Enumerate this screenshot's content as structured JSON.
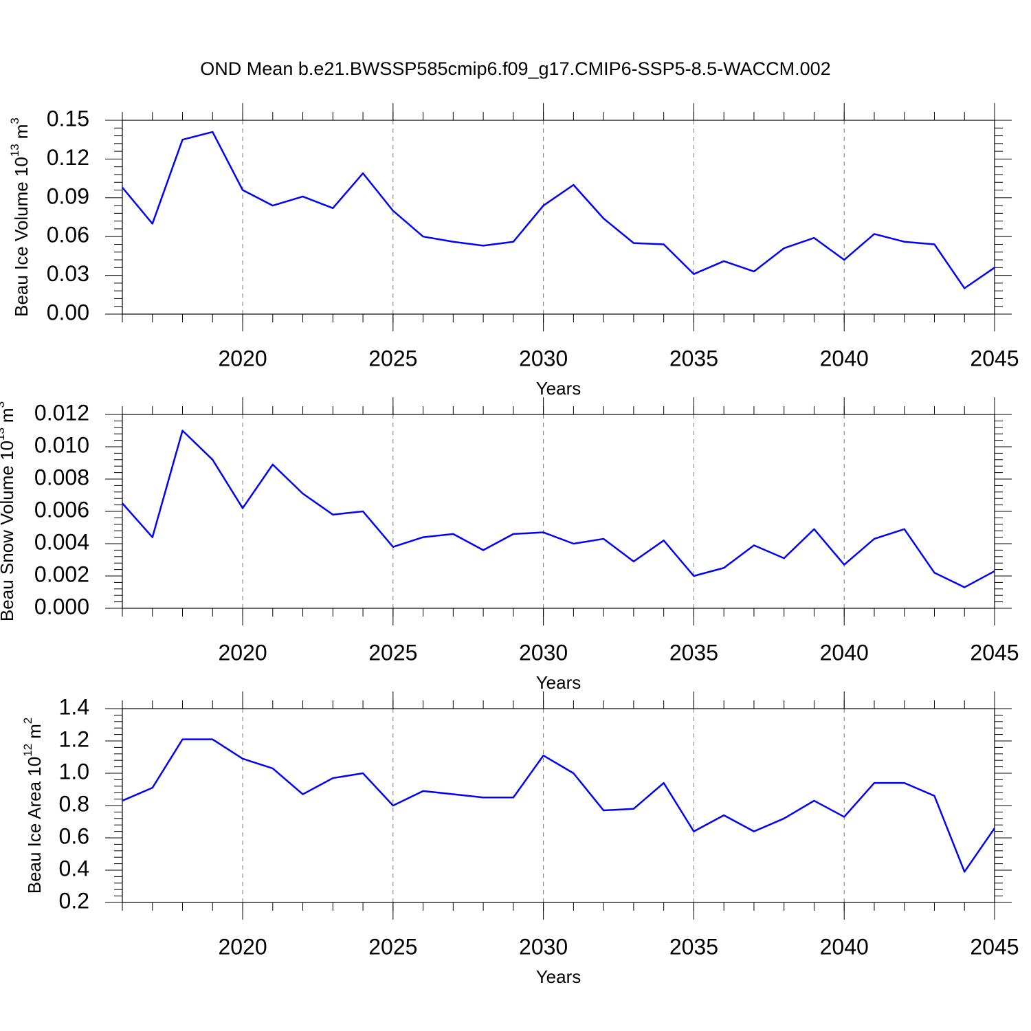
{
  "chart_data": [
    {
      "type": "line",
      "title": "OND Mean b.e21.BWSSP585cmip6.f09_g17.CMIP6-SSP5-8.5-WACCM.002",
      "ylabel": {
        "text": "Beau Ice Volume 10",
        "exp": "13",
        "unit": "m",
        "unit_exp": "3"
      },
      "xlabel": "Years",
      "x": [
        2016,
        2017,
        2018,
        2019,
        2020,
        2021,
        2022,
        2023,
        2024,
        2025,
        2026,
        2027,
        2028,
        2029,
        2030,
        2031,
        2032,
        2033,
        2034,
        2035,
        2036,
        2037,
        2038,
        2039,
        2040,
        2041,
        2042,
        2043,
        2044,
        2045
      ],
      "values": [
        0.098,
        0.07,
        0.135,
        0.141,
        0.096,
        0.084,
        0.091,
        0.082,
        0.109,
        0.08,
        0.06,
        0.056,
        0.053,
        0.056,
        0.084,
        0.1,
        0.074,
        0.055,
        0.054,
        0.031,
        0.041,
        0.033,
        0.051,
        0.059,
        0.042,
        0.062,
        0.056,
        0.054,
        0.02,
        0.036
      ],
      "color": "#0000ff",
      "xlim": [
        2016,
        2045
      ],
      "xticks": [
        2020,
        2025,
        2030,
        2035,
        2040,
        2045
      ],
      "ylim": [
        0,
        0.15
      ],
      "yticks": [
        {
          "value": 0,
          "label": "0.00"
        },
        0.03,
        0.06,
        0.09,
        0.12,
        0.15
      ],
      "grid": "x"
    },
    {
      "type": "line",
      "ylabel": {
        "text": "Beau Snow Volume 10",
        "exp": "13",
        "unit": "m",
        "unit_exp": "3"
      },
      "xlabel": "Years",
      "x": [
        2016,
        2017,
        2018,
        2019,
        2020,
        2021,
        2022,
        2023,
        2024,
        2025,
        2026,
        2027,
        2028,
        2029,
        2030,
        2031,
        2032,
        2033,
        2034,
        2035,
        2036,
        2037,
        2038,
        2039,
        2040,
        2041,
        2042,
        2043,
        2044,
        2045
      ],
      "values": [
        0.0065,
        0.0044,
        0.011,
        0.0092,
        0.0062,
        0.0089,
        0.0071,
        0.0058,
        0.006,
        0.0038,
        0.0044,
        0.0046,
        0.0036,
        0.0046,
        0.0047,
        0.004,
        0.0043,
        0.0029,
        0.0042,
        0.002,
        0.0025,
        0.0039,
        0.0031,
        0.0049,
        0.0027,
        0.0043,
        0.0049,
        0.0022,
        0.0013,
        0.0023
      ],
      "color": "#0000ff",
      "xlim": [
        2016,
        2045
      ],
      "xticks": [
        2020,
        2025,
        2030,
        2035,
        2040,
        2045
      ],
      "ylim": [
        0,
        0.012
      ],
      "yticks": [
        {
          "value": 0,
          "label": "0.000"
        },
        0.002,
        0.004,
        0.006,
        0.008,
        {
          "value": 0.01,
          "label": "0.010"
        },
        0.012
      ],
      "grid": "x"
    },
    {
      "type": "line",
      "ylabel": {
        "text": "Beau Ice Area 10",
        "exp": "12",
        "unit": "m",
        "unit_exp": "2"
      },
      "xlabel": "Years",
      "x": [
        2016,
        2017,
        2018,
        2019,
        2020,
        2021,
        2022,
        2023,
        2024,
        2025,
        2026,
        2027,
        2028,
        2029,
        2030,
        2031,
        2032,
        2033,
        2034,
        2035,
        2036,
        2037,
        2038,
        2039,
        2040,
        2041,
        2042,
        2043,
        2044,
        2045
      ],
      "values": [
        0.83,
        0.91,
        1.21,
        1.21,
        1.09,
        1.03,
        0.87,
        0.97,
        1.0,
        0.8,
        0.89,
        0.87,
        0.85,
        0.85,
        1.11,
        1.0,
        0.77,
        0.78,
        0.94,
        0.64,
        0.74,
        0.64,
        0.72,
        0.83,
        0.73,
        0.94,
        0.94,
        0.86,
        0.39,
        0.66
      ],
      "color": "#0000ff",
      "xlim": [
        2016,
        2045
      ],
      "xticks": [
        2020,
        2025,
        2030,
        2035,
        2040,
        2045
      ],
      "ylim": [
        0.2,
        1.4
      ],
      "yticks": [
        0.2,
        0.4,
        0.6,
        0.8,
        {
          "value": 1,
          "label": "1.0"
        },
        1.2,
        1.4
      ],
      "grid": "x"
    }
  ]
}
